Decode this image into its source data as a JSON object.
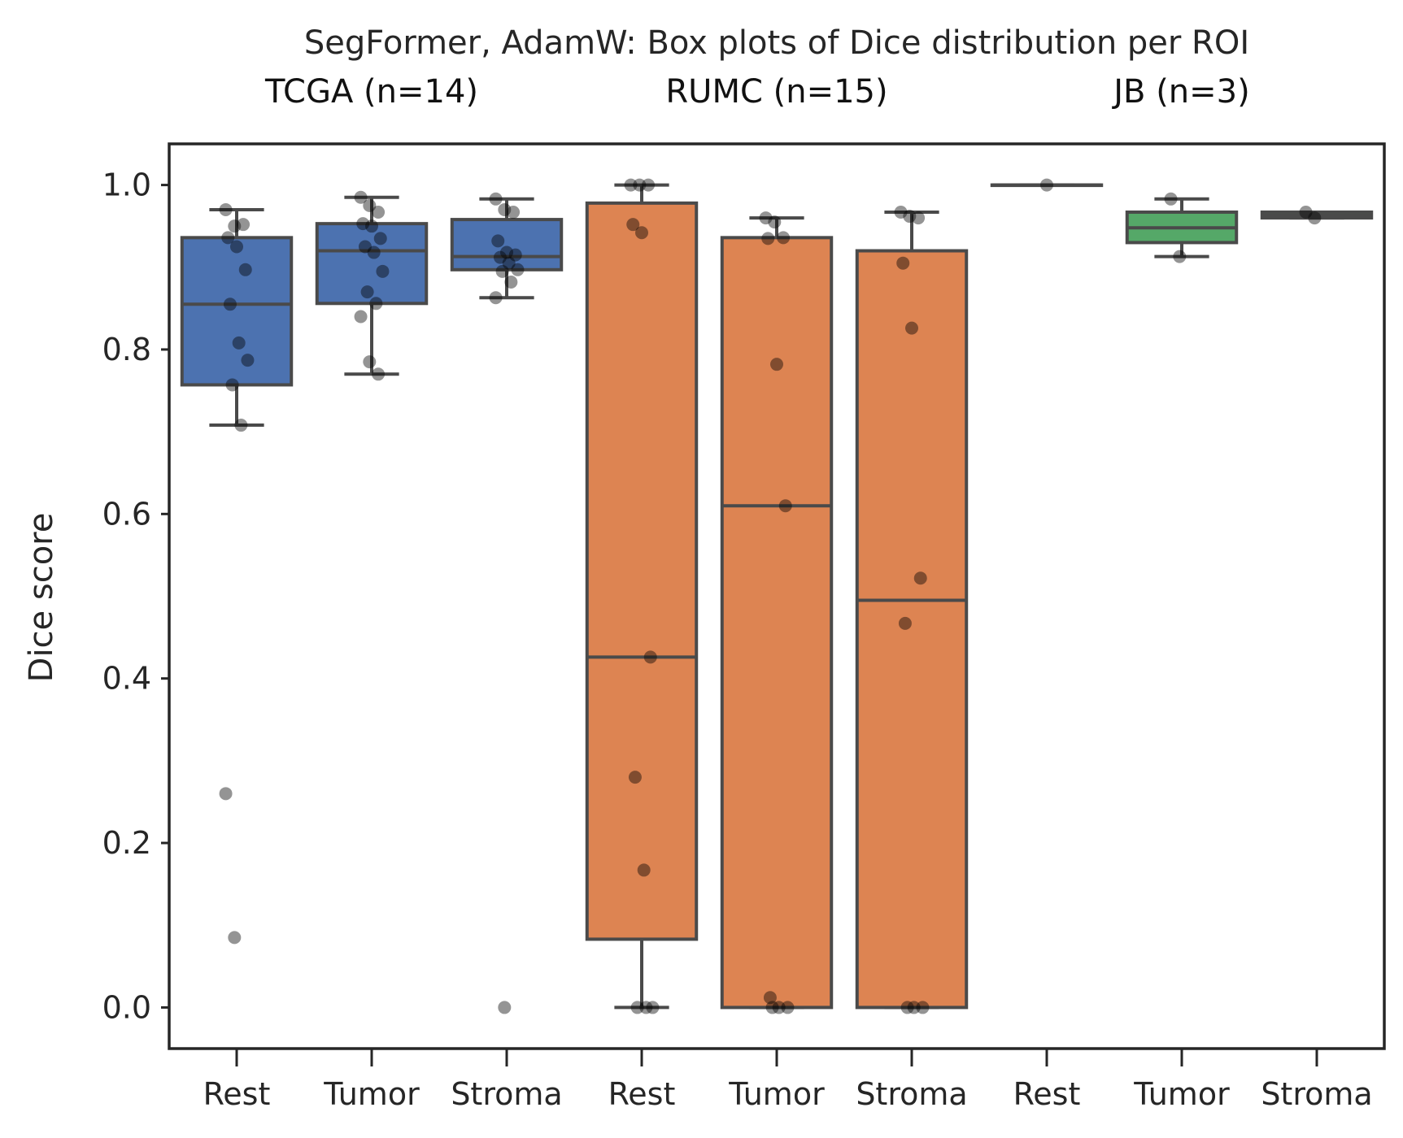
{
  "chart_data": {
    "type": "box",
    "title": "SegFormer, AdamW: Box plots of Dice distribution per ROI",
    "ylabel": "Dice score",
    "xlabel": "",
    "ylim": [
      -0.05,
      1.05
    ],
    "yticks": [
      "0.0",
      "0.2",
      "0.4",
      "0.6",
      "0.8",
      "1.0"
    ],
    "ytick_values": [
      0.0,
      0.2,
      0.4,
      0.6,
      0.8,
      1.0
    ],
    "grid": false,
    "groups": [
      {
        "label": "TCGA (n=14)",
        "color": "#4c72b0",
        "boxes": [
          {
            "category": "Rest",
            "q1": 0.757,
            "median": 0.855,
            "q3": 0.936,
            "whisker_low": 0.708,
            "whisker_high": 0.97,
            "points": [
              0.97,
              0.95,
              0.952,
              0.936,
              0.925,
              0.897,
              0.855,
              0.808,
              0.787,
              0.757,
              0.708,
              0.26,
              0.085
            ]
          },
          {
            "category": "Tumor",
            "q1": 0.856,
            "median": 0.92,
            "q3": 0.953,
            "whisker_low": 0.77,
            "whisker_high": 0.985,
            "points": [
              0.985,
              0.975,
              0.967,
              0.953,
              0.95,
              0.935,
              0.925,
              0.918,
              0.895,
              0.87,
              0.856,
              0.84,
              0.785,
              0.77
            ]
          },
          {
            "category": "Stroma",
            "q1": 0.897,
            "median": 0.913,
            "q3": 0.958,
            "whisker_low": 0.863,
            "whisker_high": 0.983,
            "points": [
              0.983,
              0.97,
              0.967,
              0.932,
              0.918,
              0.915,
              0.912,
              0.905,
              0.897,
              0.895,
              0.882,
              0.863,
              0.0
            ]
          }
        ]
      },
      {
        "label": "RUMC (n=15)",
        "color": "#dd8452",
        "boxes": [
          {
            "category": "Rest",
            "q1": 0.083,
            "median": 0.426,
            "q3": 0.978,
            "whisker_low": 0.0,
            "whisker_high": 1.0,
            "points": [
              1.0,
              1.0,
              1.0,
              0.952,
              0.942,
              0.426,
              0.28,
              0.167,
              0.0,
              0.0,
              0.0
            ]
          },
          {
            "category": "Tumor",
            "q1": 0.0,
            "median": 0.61,
            "q3": 0.936,
            "whisker_low": 0.0,
            "whisker_high": 0.96,
            "points": [
              0.96,
              0.955,
              0.936,
              0.935,
              0.782,
              0.61,
              0.012,
              0.0,
              0.0,
              0.0
            ]
          },
          {
            "category": "Stroma",
            "q1": 0.0,
            "median": 0.495,
            "q3": 0.92,
            "whisker_low": 0.0,
            "whisker_high": 0.967,
            "points": [
              0.967,
              0.962,
              0.96,
              0.905,
              0.826,
              0.522,
              0.467,
              0.0,
              0.0,
              0.0
            ]
          }
        ]
      },
      {
        "label": "JB (n=3)",
        "color": "#55a868",
        "boxes": [
          {
            "category": "Rest",
            "q1": 1.0,
            "median": 1.0,
            "q3": 1.0,
            "whisker_low": 1.0,
            "whisker_high": 1.0,
            "points": [
              1.0
            ]
          },
          {
            "category": "Tumor",
            "q1": 0.93,
            "median": 0.948,
            "q3": 0.967,
            "whisker_low": 0.913,
            "whisker_high": 0.983,
            "points": [
              0.983,
              0.913
            ]
          },
          {
            "category": "Stroma",
            "q1": 0.96,
            "median": 0.963,
            "q3": 0.967,
            "whisker_low": 0.96,
            "whisker_high": 0.967,
            "points": [
              0.967,
              0.96
            ]
          }
        ]
      }
    ]
  }
}
